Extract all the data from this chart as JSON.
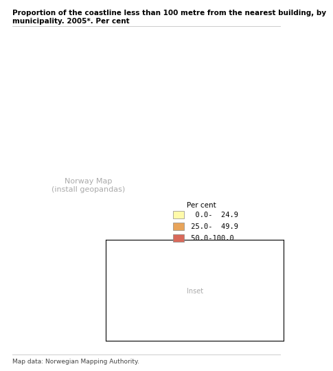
{
  "title_line1": "Proportion of the coastline less than 100 metre from the nearest building, by",
  "title_line2": "municipality. 2005*. Per cent",
  "title_fontsize": 7.5,
  "footer": "Map data: Norwegian Mapping Authority.",
  "footer_fontsize": 6.5,
  "legend_title": "Per cent",
  "legend_title_fontsize": 7.5,
  "legend_labels": [
    "  0.0-  24.9",
    " 25.0-  49.9",
    " 50.0-100.0"
  ],
  "legend_colors": [
    "#FFFAAA",
    "#E8A45A",
    "#D9695A"
  ],
  "legend_fontsize": 7.5,
  "background_color": "#ffffff",
  "map_edge_color": "#bbbbbb",
  "map_linewidth": 0.3,
  "separator_color": "#cccccc",
  "inset_edge_color": "#000000",
  "norway_interior_color": "#ffffff",
  "color_low": "#FFFAAA",
  "color_mid": "#E8A45A",
  "color_high": "#D9695A"
}
